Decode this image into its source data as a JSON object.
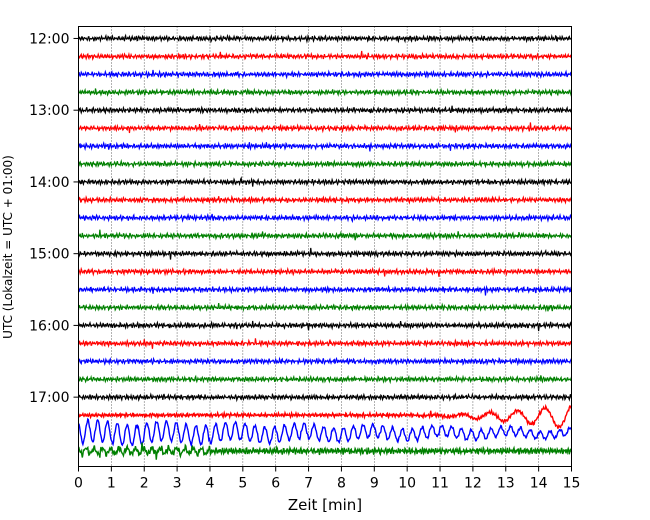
{
  "chart_data": {
    "type": "line",
    "title": "",
    "xlabel": "Zeit  [min]",
    "ylabel": "UTC (Lokalzeit = UTC + 01:00)",
    "xlim": [
      0,
      15
    ],
    "x_ticks": [
      0,
      1,
      2,
      3,
      4,
      5,
      6,
      7,
      8,
      9,
      10,
      11,
      12,
      13,
      14,
      15
    ],
    "x_tick_labels": [
      "0",
      "1",
      "2",
      "3",
      "4",
      "5",
      "6",
      "7",
      "8",
      "9",
      "10",
      "11",
      "12",
      "13",
      "14",
      "15"
    ],
    "y_ticks": [
      "12:00",
      "13:00",
      "14:00",
      "15:00",
      "16:00",
      "17:00"
    ],
    "y_range": [
      "11:50",
      "17:58"
    ],
    "grid": "vertical-dotted",
    "trace_minutes": 15,
    "colors": [
      "#000000",
      "#ff0000",
      "#0000ff",
      "#008000"
    ],
    "traces": [
      {
        "start": "12:00",
        "color": "#000000"
      },
      {
        "start": "12:15",
        "color": "#ff0000"
      },
      {
        "start": "12:30",
        "color": "#0000ff"
      },
      {
        "start": "12:45",
        "color": "#008000"
      },
      {
        "start": "13:00",
        "color": "#000000"
      },
      {
        "start": "13:15",
        "color": "#ff0000"
      },
      {
        "start": "13:30",
        "color": "#0000ff"
      },
      {
        "start": "13:45",
        "color": "#008000"
      },
      {
        "start": "14:00",
        "color": "#000000"
      },
      {
        "start": "14:15",
        "color": "#ff0000"
      },
      {
        "start": "14:30",
        "color": "#0000ff"
      },
      {
        "start": "14:45",
        "color": "#008000"
      },
      {
        "start": "15:00",
        "color": "#000000"
      },
      {
        "start": "15:15",
        "color": "#ff0000"
      },
      {
        "start": "15:30",
        "color": "#0000ff"
      },
      {
        "start": "15:45",
        "color": "#008000"
      },
      {
        "start": "16:00",
        "color": "#000000"
      },
      {
        "start": "16:15",
        "color": "#ff0000"
      },
      {
        "start": "16:30",
        "color": "#0000ff"
      },
      {
        "start": "16:45",
        "color": "#008000"
      },
      {
        "start": "17:00",
        "color": "#000000"
      },
      {
        "start": "17:15",
        "color": "#ff0000"
      },
      {
        "start": "17:30",
        "color": "#0000ff"
      },
      {
        "start": "17:45",
        "color": "#008000"
      }
    ]
  }
}
